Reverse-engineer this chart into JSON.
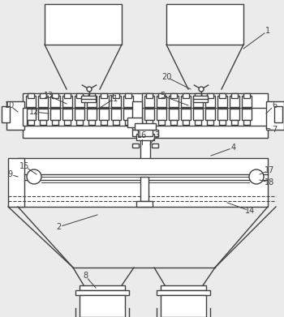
{
  "bg_color": "#ebebeb",
  "line_color": "#404040",
  "lw": 1.0,
  "figsize": [
    3.5,
    3.91
  ],
  "dpi": 100
}
